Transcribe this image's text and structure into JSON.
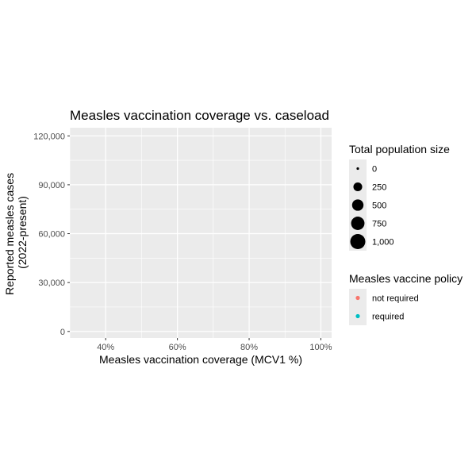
{
  "chart_data": {
    "type": "scatter",
    "title": "Measles vaccination coverage vs. caseload",
    "xlabel": "Measles vaccination coverage (MCV1 %)",
    "ylabel_lines": [
      "Reported measles cases",
      "(2022-present)"
    ],
    "xlim": [
      30,
      103
    ],
    "ylim": [
      -4000,
      125000
    ],
    "x_ticks": [
      {
        "value": 40,
        "label": "40%"
      },
      {
        "value": 60,
        "label": "60%"
      },
      {
        "value": 80,
        "label": "80%"
      },
      {
        "value": 100,
        "label": "100%"
      }
    ],
    "x_minor": [
      30,
      50,
      70,
      90
    ],
    "y_ticks": [
      {
        "value": 0,
        "label": "0"
      },
      {
        "value": 30000,
        "label": "30,000"
      },
      {
        "value": 60000,
        "label": "60,000"
      },
      {
        "value": 90000,
        "label": "90,000"
      },
      {
        "value": 120000,
        "label": "120,000"
      }
    ],
    "y_minor": [
      15000,
      45000,
      75000,
      105000
    ],
    "grid": true,
    "points": [],
    "legend_size": {
      "title": "Total population size",
      "items": [
        {
          "label": "0",
          "value": 0
        },
        {
          "label": "250",
          "value": 250
        },
        {
          "label": "500",
          "value": 500
        },
        {
          "label": "750",
          "value": 750
        },
        {
          "label": "1,000",
          "value": 1000
        }
      ]
    },
    "legend_color": {
      "title": "Measles vaccine policy",
      "items": [
        {
          "label": "not required",
          "color": "#F8766D"
        },
        {
          "label": "required",
          "color": "#00BFC4"
        }
      ]
    },
    "legend_placement": "right",
    "colors": {
      "panel_background": "#EBEBEB",
      "grid": "#FFFFFF",
      "legend_key_background": "#EBEBEB",
      "tick_label": "#4D4D4D"
    }
  }
}
